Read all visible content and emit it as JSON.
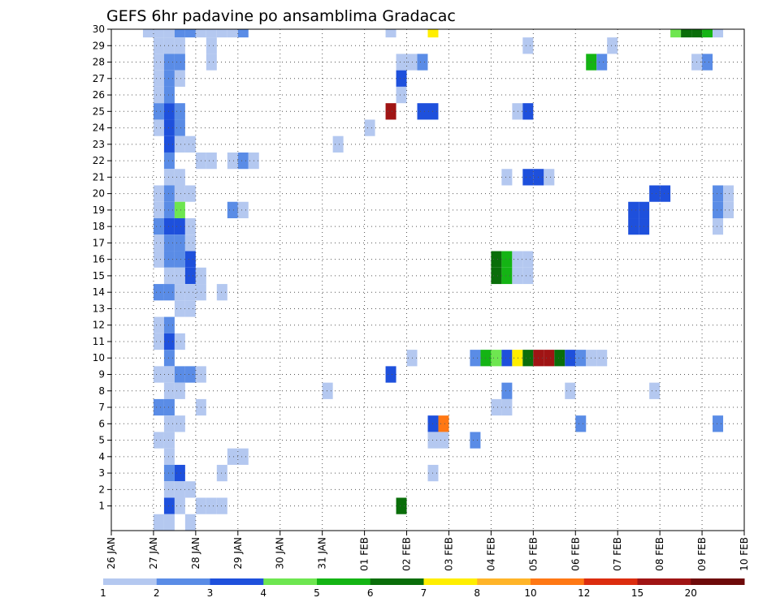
{
  "chart_data": {
    "type": "heatmap",
    "title": "GEFS 6hr padavine po ansamblima Gradacac",
    "xlabel": "",
    "ylabel": "",
    "x_start": "2020-01-26",
    "x_end": "2020-02-10",
    "step_hours": 6,
    "x_tick_labels": [
      "26 JAN",
      "27 JAN",
      "28 JAN",
      "29 JAN",
      "30 JAN",
      "31 JAN",
      "01 FEB",
      "02 FEB",
      "03 FEB",
      "04 FEB",
      "05 FEB",
      "06 FEB",
      "07 FEB",
      "08 FEB",
      "09 FEB",
      "10 FEB"
    ],
    "members": [
      1,
      2,
      3,
      4,
      5,
      6,
      7,
      8,
      9,
      10,
      11,
      12,
      13,
      14,
      15,
      16,
      17,
      18,
      19,
      20,
      21,
      22,
      23,
      24,
      25,
      26,
      27,
      28,
      29,
      30
    ],
    "grid": true,
    "legend": {
      "placement": "bottom",
      "labels": [
        "1",
        "2",
        "3",
        "4",
        "5",
        "6",
        "7",
        "8",
        "10",
        "12",
        "15",
        "20"
      ],
      "colors": [
        "#b4c8f0",
        "#5a8ce6",
        "#1e50dc",
        "#6ee650",
        "#14b414",
        "#0a6e0a",
        "#ffee00",
        "#ffb428",
        "#ff7814",
        "#dc2d0f",
        "#a01414",
        "#6e0a0a"
      ]
    },
    "cells": [
      {
        "m": 30,
        "t": "2020-01-26 18:00",
        "v": 1
      },
      {
        "m": 30,
        "t": "2020-01-27 00:00",
        "v": 1
      },
      {
        "m": 30,
        "t": "2020-01-27 06:00",
        "v": 1
      },
      {
        "m": 30,
        "t": "2020-01-27 12:00",
        "v": 2
      },
      {
        "m": 30,
        "t": "2020-01-27 18:00",
        "v": 2
      },
      {
        "m": 30,
        "t": "2020-01-28 00:00",
        "v": 1
      },
      {
        "m": 30,
        "t": "2020-01-28 06:00",
        "v": 1
      },
      {
        "m": 30,
        "t": "2020-01-28 12:00",
        "v": 1
      },
      {
        "m": 30,
        "t": "2020-01-28 18:00",
        "v": 1
      },
      {
        "m": 30,
        "t": "2020-01-29 00:00",
        "v": 2
      },
      {
        "m": 30,
        "t": "2020-02-01 12:00",
        "v": 1
      },
      {
        "m": 30,
        "t": "2020-02-02 12:00",
        "v": 7
      },
      {
        "m": 30,
        "t": "2020-02-08 06:00",
        "v": 4
      },
      {
        "m": 30,
        "t": "2020-02-08 12:00",
        "v": 6
      },
      {
        "m": 30,
        "t": "2020-02-08 18:00",
        "v": 6
      },
      {
        "m": 30,
        "t": "2020-02-09 00:00",
        "v": 5
      },
      {
        "m": 30,
        "t": "2020-02-09 06:00",
        "v": 1
      },
      {
        "m": 29,
        "t": "2020-01-27 00:00",
        "v": 1
      },
      {
        "m": 29,
        "t": "2020-01-27 06:00",
        "v": 1
      },
      {
        "m": 29,
        "t": "2020-01-27 12:00",
        "v": 1
      },
      {
        "m": 29,
        "t": "2020-01-28 06:00",
        "v": 1
      },
      {
        "m": 29,
        "t": "2020-02-04 18:00",
        "v": 1
      },
      {
        "m": 29,
        "t": "2020-02-06 18:00",
        "v": 1
      },
      {
        "m": 28,
        "t": "2020-01-27 00:00",
        "v": 1
      },
      {
        "m": 28,
        "t": "2020-01-27 06:00",
        "v": 2
      },
      {
        "m": 28,
        "t": "2020-01-27 12:00",
        "v": 2
      },
      {
        "m": 28,
        "t": "2020-01-28 06:00",
        "v": 1
      },
      {
        "m": 28,
        "t": "2020-02-01 18:00",
        "v": 1
      },
      {
        "m": 28,
        "t": "2020-02-02 00:00",
        "v": 1
      },
      {
        "m": 28,
        "t": "2020-02-02 06:00",
        "v": 2
      },
      {
        "m": 28,
        "t": "2020-02-06 06:00",
        "v": 5
      },
      {
        "m": 28,
        "t": "2020-02-06 12:00",
        "v": 2
      },
      {
        "m": 28,
        "t": "2020-02-08 18:00",
        "v": 1
      },
      {
        "m": 28,
        "t": "2020-02-09 00:00",
        "v": 2
      },
      {
        "m": 27,
        "t": "2020-01-27 00:00",
        "v": 1
      },
      {
        "m": 27,
        "t": "2020-01-27 06:00",
        "v": 2
      },
      {
        "m": 27,
        "t": "2020-01-27 12:00",
        "v": 1
      },
      {
        "m": 27,
        "t": "2020-02-01 18:00",
        "v": 3
      },
      {
        "m": 26,
        "t": "2020-01-27 00:00",
        "v": 1
      },
      {
        "m": 26,
        "t": "2020-01-27 06:00",
        "v": 2
      },
      {
        "m": 26,
        "t": "2020-02-01 18:00",
        "v": 1
      },
      {
        "m": 25,
        "t": "2020-01-27 00:00",
        "v": 2
      },
      {
        "m": 25,
        "t": "2020-01-27 06:00",
        "v": 3
      },
      {
        "m": 25,
        "t": "2020-01-27 12:00",
        "v": 2
      },
      {
        "m": 25,
        "t": "2020-02-01 12:00",
        "v": 15
      },
      {
        "m": 25,
        "t": "2020-02-02 06:00",
        "v": 3
      },
      {
        "m": 25,
        "t": "2020-02-02 12:00",
        "v": 3
      },
      {
        "m": 25,
        "t": "2020-02-04 12:00",
        "v": 1
      },
      {
        "m": 25,
        "t": "2020-02-04 18:00",
        "v": 3
      },
      {
        "m": 24,
        "t": "2020-01-27 00:00",
        "v": 1
      },
      {
        "m": 24,
        "t": "2020-01-27 06:00",
        "v": 3
      },
      {
        "m": 24,
        "t": "2020-01-27 12:00",
        "v": 2
      },
      {
        "m": 24,
        "t": "2020-02-01 00:00",
        "v": 1
      },
      {
        "m": 23,
        "t": "2020-01-27 06:00",
        "v": 3
      },
      {
        "m": 23,
        "t": "2020-01-27 12:00",
        "v": 1
      },
      {
        "m": 23,
        "t": "2020-01-27 18:00",
        "v": 1
      },
      {
        "m": 23,
        "t": "2020-01-31 06:00",
        "v": 1
      },
      {
        "m": 22,
        "t": "2020-01-27 06:00",
        "v": 2
      },
      {
        "m": 22,
        "t": "2020-01-28 00:00",
        "v": 1
      },
      {
        "m": 22,
        "t": "2020-01-28 06:00",
        "v": 1
      },
      {
        "m": 22,
        "t": "2020-01-28 18:00",
        "v": 1
      },
      {
        "m": 22,
        "t": "2020-01-29 00:00",
        "v": 2
      },
      {
        "m": 22,
        "t": "2020-01-29 06:00",
        "v": 1
      },
      {
        "m": 21,
        "t": "2020-01-27 06:00",
        "v": 1
      },
      {
        "m": 21,
        "t": "2020-01-27 12:00",
        "v": 1
      },
      {
        "m": 21,
        "t": "2020-02-04 06:00",
        "v": 1
      },
      {
        "m": 21,
        "t": "2020-02-04 18:00",
        "v": 3
      },
      {
        "m": 21,
        "t": "2020-02-05 00:00",
        "v": 3
      },
      {
        "m": 21,
        "t": "2020-02-05 06:00",
        "v": 1
      },
      {
        "m": 20,
        "t": "2020-01-27 00:00",
        "v": 1
      },
      {
        "m": 20,
        "t": "2020-01-27 06:00",
        "v": 2
      },
      {
        "m": 20,
        "t": "2020-01-27 12:00",
        "v": 1
      },
      {
        "m": 20,
        "t": "2020-01-27 18:00",
        "v": 1
      },
      {
        "m": 20,
        "t": "2020-02-07 18:00",
        "v": 3
      },
      {
        "m": 20,
        "t": "2020-02-08 00:00",
        "v": 3
      },
      {
        "m": 20,
        "t": "2020-02-09 06:00",
        "v": 2
      },
      {
        "m": 20,
        "t": "2020-02-09 12:00",
        "v": 1
      },
      {
        "m": 19,
        "t": "2020-01-27 00:00",
        "v": 1
      },
      {
        "m": 19,
        "t": "2020-01-27 06:00",
        "v": 2
      },
      {
        "m": 19,
        "t": "2020-01-27 12:00",
        "v": 4
      },
      {
        "m": 19,
        "t": "2020-01-28 18:00",
        "v": 2
      },
      {
        "m": 19,
        "t": "2020-01-29 00:00",
        "v": 1
      },
      {
        "m": 19,
        "t": "2020-02-07 06:00",
        "v": 3
      },
      {
        "m": 19,
        "t": "2020-02-07 12:00",
        "v": 3
      },
      {
        "m": 19,
        "t": "2020-02-09 06:00",
        "v": 2
      },
      {
        "m": 19,
        "t": "2020-02-09 12:00",
        "v": 1
      },
      {
        "m": 18,
        "t": "2020-01-27 00:00",
        "v": 2
      },
      {
        "m": 18,
        "t": "2020-01-27 06:00",
        "v": 3
      },
      {
        "m": 18,
        "t": "2020-01-27 12:00",
        "v": 3
      },
      {
        "m": 18,
        "t": "2020-01-27 18:00",
        "v": 1
      },
      {
        "m": 18,
        "t": "2020-02-07 06:00",
        "v": 3
      },
      {
        "m": 18,
        "t": "2020-02-07 12:00",
        "v": 3
      },
      {
        "m": 18,
        "t": "2020-02-09 06:00",
        "v": 1
      },
      {
        "m": 17,
        "t": "2020-01-27 00:00",
        "v": 1
      },
      {
        "m": 17,
        "t": "2020-01-27 06:00",
        "v": 2
      },
      {
        "m": 17,
        "t": "2020-01-27 12:00",
        "v": 2
      },
      {
        "m": 17,
        "t": "2020-01-27 18:00",
        "v": 1
      },
      {
        "m": 16,
        "t": "2020-01-27 00:00",
        "v": 1
      },
      {
        "m": 16,
        "t": "2020-01-27 06:00",
        "v": 2
      },
      {
        "m": 16,
        "t": "2020-01-27 12:00",
        "v": 2
      },
      {
        "m": 16,
        "t": "2020-01-27 18:00",
        "v": 3
      },
      {
        "m": 16,
        "t": "2020-02-04 00:00",
        "v": 6
      },
      {
        "m": 16,
        "t": "2020-02-04 06:00",
        "v": 5
      },
      {
        "m": 16,
        "t": "2020-02-04 12:00",
        "v": 1
      },
      {
        "m": 16,
        "t": "2020-02-04 18:00",
        "v": 1
      },
      {
        "m": 15,
        "t": "2020-01-27 06:00",
        "v": 1
      },
      {
        "m": 15,
        "t": "2020-01-27 12:00",
        "v": 1
      },
      {
        "m": 15,
        "t": "2020-01-27 18:00",
        "v": 3
      },
      {
        "m": 15,
        "t": "2020-01-28 00:00",
        "v": 1
      },
      {
        "m": 15,
        "t": "2020-02-04 00:00",
        "v": 6
      },
      {
        "m": 15,
        "t": "2020-02-04 06:00",
        "v": 5
      },
      {
        "m": 15,
        "t": "2020-02-04 12:00",
        "v": 1
      },
      {
        "m": 15,
        "t": "2020-02-04 18:00",
        "v": 1
      },
      {
        "m": 14,
        "t": "2020-01-27 00:00",
        "v": 2
      },
      {
        "m": 14,
        "t": "2020-01-27 06:00",
        "v": 2
      },
      {
        "m": 14,
        "t": "2020-01-27 12:00",
        "v": 1
      },
      {
        "m": 14,
        "t": "2020-01-27 18:00",
        "v": 1
      },
      {
        "m": 14,
        "t": "2020-01-28 00:00",
        "v": 1
      },
      {
        "m": 14,
        "t": "2020-01-28 12:00",
        "v": 1
      },
      {
        "m": 13,
        "t": "2020-01-27 12:00",
        "v": 1
      },
      {
        "m": 13,
        "t": "2020-01-27 18:00",
        "v": 1
      },
      {
        "m": 12,
        "t": "2020-01-27 00:00",
        "v": 1
      },
      {
        "m": 12,
        "t": "2020-01-27 06:00",
        "v": 2
      },
      {
        "m": 11,
        "t": "2020-01-27 00:00",
        "v": 1
      },
      {
        "m": 11,
        "t": "2020-01-27 06:00",
        "v": 3
      },
      {
        "m": 11,
        "t": "2020-01-27 12:00",
        "v": 1
      },
      {
        "m": 10,
        "t": "2020-01-27 06:00",
        "v": 2
      },
      {
        "m": 10,
        "t": "2020-02-02 00:00",
        "v": 1
      },
      {
        "m": 10,
        "t": "2020-02-03 12:00",
        "v": 2
      },
      {
        "m": 10,
        "t": "2020-02-03 18:00",
        "v": 5
      },
      {
        "m": 10,
        "t": "2020-02-04 00:00",
        "v": 4
      },
      {
        "m": 10,
        "t": "2020-02-04 06:00",
        "v": 3
      },
      {
        "m": 10,
        "t": "2020-02-04 12:00",
        "v": 7
      },
      {
        "m": 10,
        "t": "2020-02-04 18:00",
        "v": 6
      },
      {
        "m": 10,
        "t": "2020-02-05 00:00",
        "v": 15
      },
      {
        "m": 10,
        "t": "2020-02-05 06:00",
        "v": 15
      },
      {
        "m": 10,
        "t": "2020-02-05 12:00",
        "v": 6
      },
      {
        "m": 10,
        "t": "2020-02-05 18:00",
        "v": 3
      },
      {
        "m": 10,
        "t": "2020-02-06 00:00",
        "v": 2
      },
      {
        "m": 10,
        "t": "2020-02-06 06:00",
        "v": 1
      },
      {
        "m": 10,
        "t": "2020-02-06 12:00",
        "v": 1
      },
      {
        "m": 9,
        "t": "2020-01-27 00:00",
        "v": 1
      },
      {
        "m": 9,
        "t": "2020-01-27 06:00",
        "v": 1
      },
      {
        "m": 9,
        "t": "2020-01-27 12:00",
        "v": 2
      },
      {
        "m": 9,
        "t": "2020-01-27 18:00",
        "v": 2
      },
      {
        "m": 9,
        "t": "2020-01-28 00:00",
        "v": 1
      },
      {
        "m": 9,
        "t": "2020-02-01 12:00",
        "v": 3
      },
      {
        "m": 8,
        "t": "2020-01-27 06:00",
        "v": 1
      },
      {
        "m": 8,
        "t": "2020-01-27 12:00",
        "v": 1
      },
      {
        "m": 8,
        "t": "2020-01-31 00:00",
        "v": 1
      },
      {
        "m": 8,
        "t": "2020-02-04 06:00",
        "v": 2
      },
      {
        "m": 8,
        "t": "2020-02-05 18:00",
        "v": 1
      },
      {
        "m": 8,
        "t": "2020-02-07 18:00",
        "v": 1
      },
      {
        "m": 7,
        "t": "2020-01-27 00:00",
        "v": 2
      },
      {
        "m": 7,
        "t": "2020-01-27 06:00",
        "v": 2
      },
      {
        "m": 7,
        "t": "2020-01-28 00:00",
        "v": 1
      },
      {
        "m": 7,
        "t": "2020-02-04 00:00",
        "v": 1
      },
      {
        "m": 7,
        "t": "2020-02-04 06:00",
        "v": 1
      },
      {
        "m": 6,
        "t": "2020-01-27 06:00",
        "v": 1
      },
      {
        "m": 6,
        "t": "2020-01-27 12:00",
        "v": 1
      },
      {
        "m": 6,
        "t": "2020-02-02 12:00",
        "v": 3
      },
      {
        "m": 6,
        "t": "2020-02-02 18:00",
        "v": 10
      },
      {
        "m": 6,
        "t": "2020-02-06 00:00",
        "v": 2
      },
      {
        "m": 6,
        "t": "2020-02-09 06:00",
        "v": 2
      },
      {
        "m": 5,
        "t": "2020-01-27 00:00",
        "v": 1
      },
      {
        "m": 5,
        "t": "2020-01-27 06:00",
        "v": 1
      },
      {
        "m": 5,
        "t": "2020-02-02 12:00",
        "v": 1
      },
      {
        "m": 5,
        "t": "2020-02-02 18:00",
        "v": 1
      },
      {
        "m": 5,
        "t": "2020-02-03 12:00",
        "v": 2
      },
      {
        "m": 4,
        "t": "2020-01-27 06:00",
        "v": 1
      },
      {
        "m": 4,
        "t": "2020-01-28 18:00",
        "v": 1
      },
      {
        "m": 4,
        "t": "2020-01-29 00:00",
        "v": 1
      },
      {
        "m": 3,
        "t": "2020-01-27 06:00",
        "v": 2
      },
      {
        "m": 3,
        "t": "2020-01-27 12:00",
        "v": 3
      },
      {
        "m": 3,
        "t": "2020-01-28 12:00",
        "v": 1
      },
      {
        "m": 3,
        "t": "2020-02-02 12:00",
        "v": 1
      },
      {
        "m": 2,
        "t": "2020-01-27 06:00",
        "v": 1
      },
      {
        "m": 2,
        "t": "2020-01-27 12:00",
        "v": 1
      },
      {
        "m": 2,
        "t": "2020-01-27 18:00",
        "v": 1
      },
      {
        "m": 1,
        "t": "2020-01-27 06:00",
        "v": 3
      },
      {
        "m": 1,
        "t": "2020-01-27 12:00",
        "v": 1
      },
      {
        "m": 1,
        "t": "2020-01-28 00:00",
        "v": 1
      },
      {
        "m": 1,
        "t": "2020-01-28 06:00",
        "v": 1
      },
      {
        "m": 1,
        "t": "2020-01-28 12:00",
        "v": 1
      },
      {
        "m": 1,
        "t": "2020-02-01 18:00",
        "v": 6
      },
      {
        "m": 0,
        "t": "2020-01-27 00:00",
        "v": 1
      },
      {
        "m": 0,
        "t": "2020-01-27 06:00",
        "v": 1
      },
      {
        "m": 0,
        "t": "2020-01-27 18:00",
        "v": 1
      }
    ]
  }
}
